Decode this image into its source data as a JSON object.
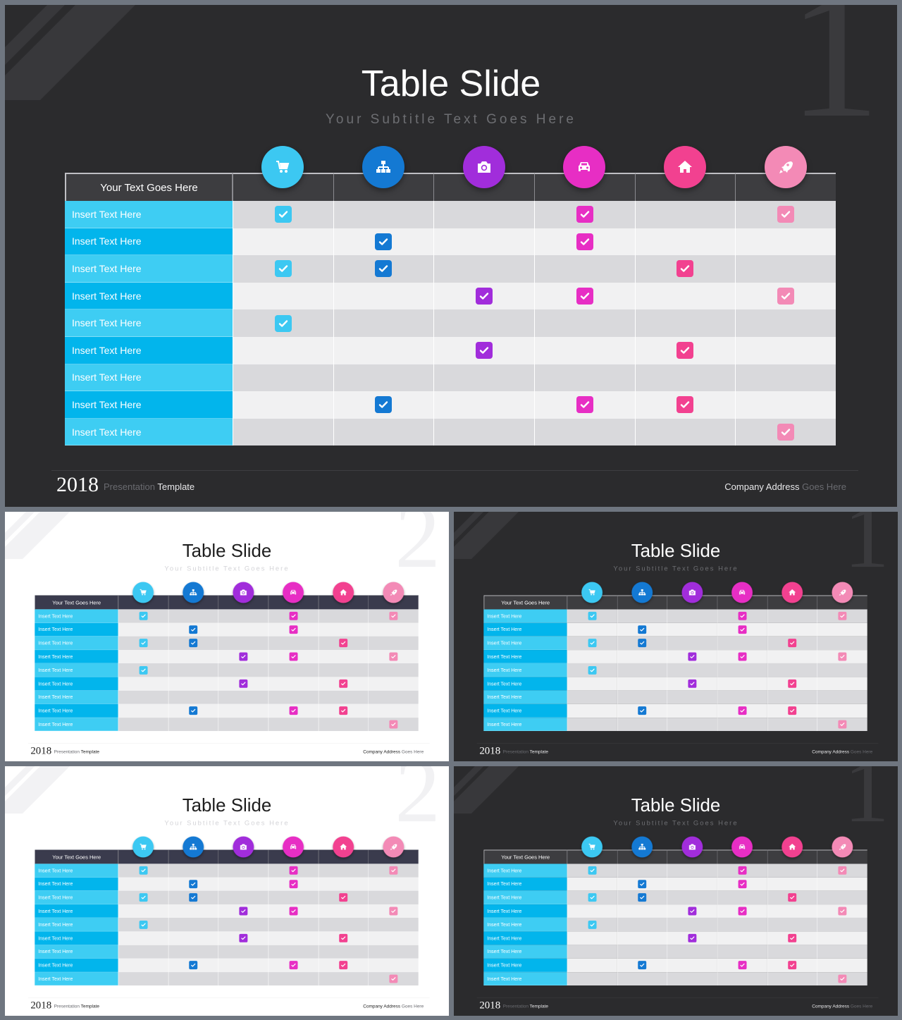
{
  "slides": [
    {
      "theme": "dark",
      "big_number": "1"
    },
    {
      "theme": "light",
      "big_number": "2"
    },
    {
      "theme": "dark",
      "big_number": "1"
    },
    {
      "theme": "light",
      "big_number": "2"
    },
    {
      "theme": "dark",
      "big_number": "1"
    }
  ],
  "title": "Table Slide",
  "subtitle": "Your Subtitle Text Goes Here",
  "header_label": "Your Text Goes Here",
  "row_label": "Insert Text Here",
  "columns": [
    {
      "icon": "cart-icon",
      "color": "#3cc8f2"
    },
    {
      "icon": "sitemap-icon",
      "color": "#1479d3"
    },
    {
      "icon": "camera-icon",
      "color": "#a12ddb"
    },
    {
      "icon": "car-icon",
      "color": "#e72ec4"
    },
    {
      "icon": "home-icon",
      "color": "#f24190"
    },
    {
      "icon": "rocket-icon",
      "color": "#f38ab6"
    }
  ],
  "rows": [
    [
      1,
      0,
      0,
      1,
      0,
      1
    ],
    [
      0,
      1,
      0,
      1,
      0,
      0
    ],
    [
      1,
      1,
      0,
      0,
      1,
      0
    ],
    [
      0,
      0,
      1,
      1,
      0,
      1
    ],
    [
      1,
      0,
      0,
      0,
      0,
      0
    ],
    [
      0,
      0,
      1,
      0,
      1,
      0
    ],
    [
      0,
      0,
      0,
      0,
      0,
      0
    ],
    [
      0,
      1,
      0,
      1,
      1,
      0
    ],
    [
      0,
      0,
      0,
      0,
      0,
      1
    ]
  ],
  "footer": {
    "year": "2018",
    "presentation_muted": "Presentation",
    "presentation_strong": "Template",
    "address_strong": "Company Address",
    "address_muted": "Goes Here"
  }
}
